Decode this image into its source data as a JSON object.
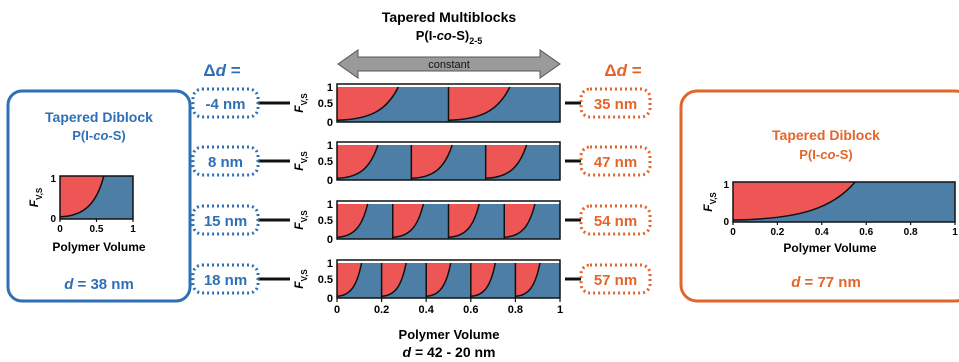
{
  "colors": {
    "blue": "#2f6fb6",
    "orange": "#e2652b",
    "fill_red": "#ee5555",
    "fill_blue": "#4d7fa6"
  },
  "center": {
    "title": "Tapered Multiblocks",
    "formula": {
      "prefix": "P(I-",
      "co": "co",
      "suffix": "-S)",
      "subscript": "2-5"
    },
    "arrow_label": "constant",
    "ylabel": {
      "main": "F",
      "sub": "V,S"
    },
    "yticks": [
      "1",
      "0.5",
      "0"
    ],
    "xticks": [
      "0",
      "0.2",
      "0.4",
      "0.6",
      "0.8",
      "1"
    ],
    "xlabel": "Polymer Volume",
    "d_label": {
      "var": "d",
      "rest": " = 42 - 20 nm"
    },
    "rows": [
      {
        "blocks": 2
      },
      {
        "blocks": 3
      },
      {
        "blocks": 4
      },
      {
        "blocks": 5
      }
    ]
  },
  "left": {
    "header": {
      "delta": "Δ",
      "var": "d",
      "eq": " ="
    },
    "deltas": [
      "-4 nm",
      "8 nm",
      "15 nm",
      "18 nm"
    ],
    "panel": {
      "title": "Tapered Diblock",
      "formula": {
        "prefix": "P(I-",
        "co": "co",
        "suffix": "-S)"
      },
      "ylabel": {
        "main": "F",
        "sub": "V,S"
      },
      "yticks": [
        "1",
        "0"
      ],
      "xticks": [
        "0",
        "0.5",
        "1"
      ],
      "xlabel": "Polymer Volume",
      "d_label": {
        "var": "d",
        "rest": " = 38 nm"
      }
    }
  },
  "right": {
    "header": {
      "delta": "Δ",
      "var": "d",
      "eq": " ="
    },
    "deltas": [
      "35 nm",
      "47 nm",
      "54 nm",
      "57 nm"
    ],
    "panel": {
      "title": "Tapered Diblock",
      "formula": {
        "prefix": "P(I-",
        "co": "co",
        "suffix": "-S)"
      },
      "ylabel": {
        "main": "F",
        "sub": "V,S"
      },
      "yticks": [
        "1",
        "0"
      ],
      "xticks": [
        "0",
        "0.2",
        "0.4",
        "0.6",
        "0.8",
        "1"
      ],
      "xlabel": "Polymer Volume",
      "d_label": {
        "var": "d",
        "rest": " = 77 nm"
      }
    }
  }
}
